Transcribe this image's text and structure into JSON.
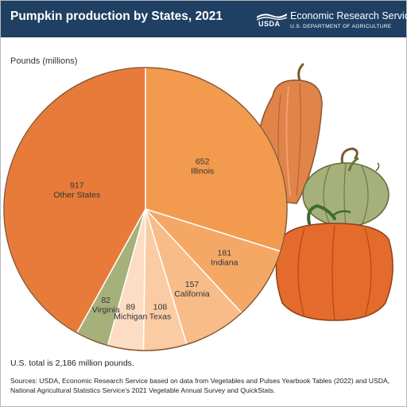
{
  "header": {
    "title": "Pumpkin production by States, 2021",
    "agency_logo": "USDA",
    "agency_name": "Economic Research Service",
    "department": "U.S. DEPARTMENT OF AGRICULTURE",
    "background_color": "#1f3f63"
  },
  "chart_data": {
    "type": "pie",
    "title": "Pumpkin production by States, 2021",
    "unit_label": "Pounds (millions)",
    "slices": [
      {
        "label": "Illinois",
        "value": 652,
        "color": "#f29a4d"
      },
      {
        "label": "Indiana",
        "value": 181,
        "color": "#f5a866"
      },
      {
        "label": "California",
        "value": 157,
        "color": "#f8bc89"
      },
      {
        "label": "Texas",
        "value": 108,
        "color": "#fbcca4"
      },
      {
        "label": "Michigan",
        "value": 89,
        "color": "#fcdcc2"
      },
      {
        "label": "Virginia",
        "value": 82,
        "color": "#a6b07a"
      },
      {
        "label": "Other States",
        "value": 917,
        "color": "#e87b3a"
      }
    ],
    "slice_border_color": "#ffffff",
    "outline_color": "#8a5530",
    "decoration": "illustrated pumpkins"
  },
  "footer": {
    "total": "U.S. total is 2,186 million pounds.",
    "source": "Sources: USDA, Economic Research Service based on data from Vegetables and Pulses Yearbook Tables (2022) and USDA, National Agricultural Statistics Service’s 2021 Vegetable Annual Survey and QuickStats."
  }
}
